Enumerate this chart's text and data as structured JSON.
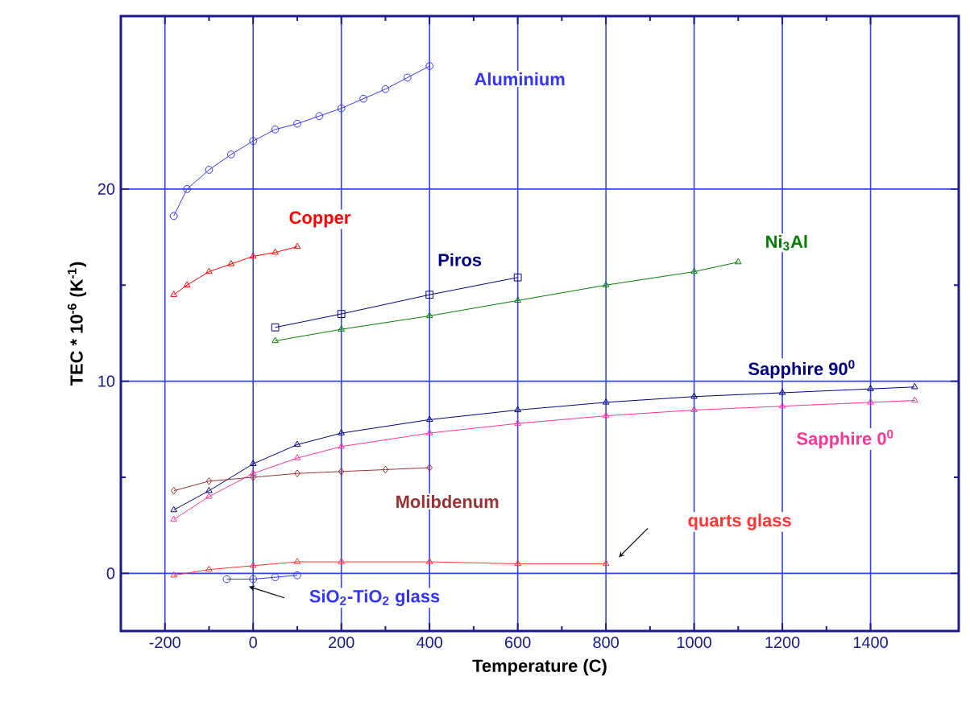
{
  "chart_data": {
    "type": "line",
    "xlabel": "Temperature (C)",
    "ylabel": "TEC * 10$^{-6}$ (K$^{-1}$)",
    "xlim": [
      -300,
      1600
    ],
    "ylim": [
      -3,
      29
    ],
    "xticks": [
      -200,
      0,
      200,
      400,
      600,
      800,
      1000,
      1200,
      1400
    ],
    "yticks": [
      0,
      10,
      20
    ],
    "grid": true,
    "line_style": "solid",
    "series": [
      {
        "name": "Aluminium",
        "color": "#3333ff",
        "marker": "circle",
        "x": [
          -180,
          -150,
          -100,
          -50,
          0,
          50,
          100,
          150,
          200,
          250,
          300,
          350,
          400
        ],
        "values": [
          18.6,
          20,
          21,
          21.8,
          22.5,
          23.1,
          23.4,
          23.8,
          24.2,
          24.7,
          25.2,
          25.8,
          26.4
        ]
      },
      {
        "name": "Copper",
        "color": "#ff0000",
        "marker": "triangle",
        "x": [
          -180,
          -150,
          -100,
          -50,
          0,
          50,
          100
        ],
        "values": [
          14.5,
          15,
          15.7,
          16.1,
          16.5,
          16.7,
          17
        ]
      },
      {
        "name": "Piros",
        "color": "#000080",
        "marker": "square",
        "x": [
          50,
          200,
          400,
          600
        ],
        "values": [
          12.8,
          13.5,
          14.5,
          15.4
        ]
      },
      {
        "name": "Ni$_{3}$Al",
        "color": "#008000",
        "marker": "triangle",
        "x": [
          50,
          200,
          400,
          600,
          800,
          1000,
          1100
        ],
        "values": [
          12.1,
          12.7,
          13.4,
          14.2,
          15,
          15.7,
          16.2
        ]
      },
      {
        "name": "Sapphire 90$^{0}$",
        "color": "#000080",
        "marker": "triangle",
        "x": [
          -180,
          -100,
          0,
          100,
          200,
          400,
          600,
          800,
          1000,
          1200,
          1400,
          1500
        ],
        "values": [
          3.3,
          4.3,
          5.7,
          6.7,
          7.3,
          8,
          8.5,
          8.9,
          9.2,
          9.4,
          9.6,
          9.7
        ]
      },
      {
        "name": "Sapphire 0$^{0}$",
        "color": "#ff3399",
        "marker": "triangle",
        "x": [
          -180,
          -100,
          0,
          100,
          200,
          400,
          600,
          800,
          1000,
          1200,
          1400,
          1500
        ],
        "values": [
          2.8,
          4,
          5.2,
          6,
          6.6,
          7.3,
          7.8,
          8.2,
          8.5,
          8.7,
          8.9,
          9
        ]
      },
      {
        "name": "Molibdenum",
        "color": "#993333",
        "marker": "diamond",
        "x": [
          -180,
          -100,
          0,
          100,
          200,
          300,
          400
        ],
        "values": [
          4.3,
          4.8,
          5,
          5.2,
          5.3,
          5.4,
          5.5
        ]
      },
      {
        "name": "quarts glass",
        "color": "#ff3333",
        "marker": "triangle",
        "x": [
          -180,
          -100,
          0,
          100,
          200,
          400,
          600,
          800
        ],
        "values": [
          -0.1,
          0.2,
          0.4,
          0.6,
          0.6,
          0.6,
          0.5,
          0.5
        ]
      },
      {
        "name": "SiO$_{2}$-TiO$_{2}$ glass",
        "color": "#3333ff",
        "marker": "circle",
        "x": [
          -60,
          0,
          50,
          100
        ],
        "values": [
          -0.3,
          -0.3,
          -0.2,
          -0.1
        ]
      }
    ]
  }
}
